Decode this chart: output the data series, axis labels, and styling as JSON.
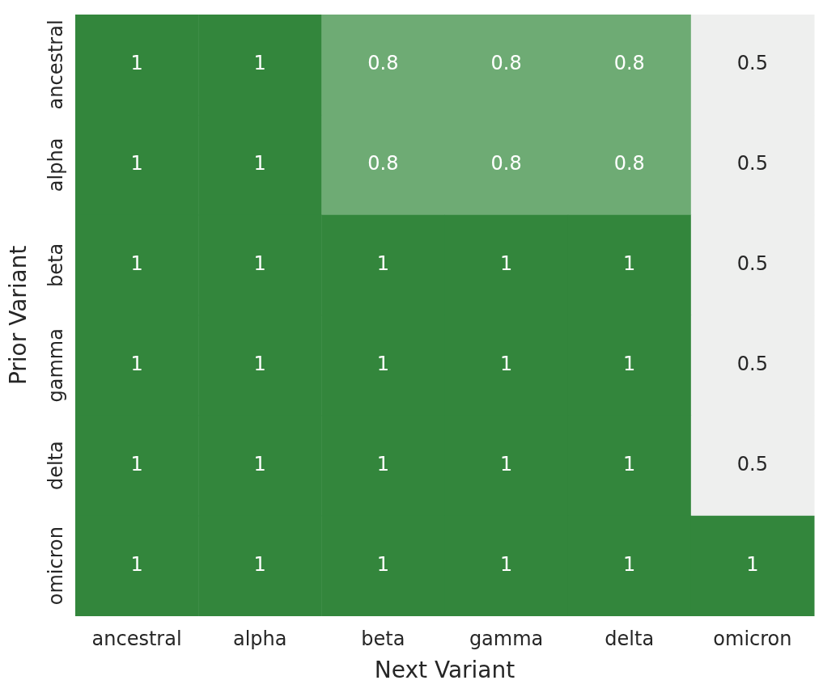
{
  "chart_data": {
    "type": "heatmap",
    "xlabel": "Next Variant",
    "ylabel": "Prior Variant",
    "categories": [
      "ancestral",
      "alpha",
      "beta",
      "gamma",
      "delta",
      "omicron"
    ],
    "y_categories": [
      "ancestral",
      "alpha",
      "beta",
      "gamma",
      "delta",
      "omicron"
    ],
    "cells": [
      [
        1,
        1,
        0.8,
        0.8,
        0.8,
        0.5
      ],
      [
        1,
        1,
        0.8,
        0.8,
        0.8,
        0.5
      ],
      [
        1,
        1,
        1,
        1,
        1,
        0.5
      ],
      [
        1,
        1,
        1,
        1,
        1,
        0.5
      ],
      [
        1,
        1,
        1,
        1,
        1,
        0.5
      ],
      [
        1,
        1,
        1,
        1,
        1,
        1
      ]
    ],
    "colors": [
      "#eeefee",
      "#7db482",
      "#33863c"
    ],
    "data_labels": true
  }
}
